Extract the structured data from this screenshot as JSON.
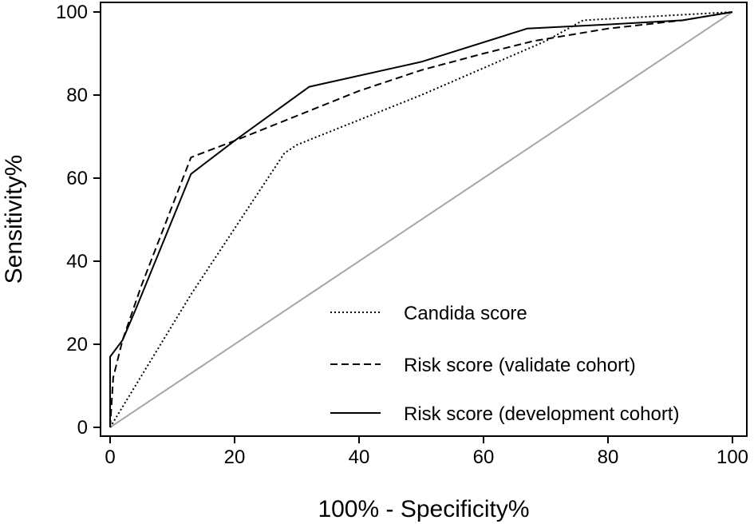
{
  "chart_data": {
    "type": "line",
    "title": "",
    "xlabel": "100% - Specificity%",
    "ylabel": "Sensitivity%",
    "xlim": [
      0,
      100
    ],
    "ylim": [
      0,
      100
    ],
    "xticks": [
      0,
      20,
      40,
      60,
      80,
      100
    ],
    "yticks": [
      0,
      20,
      40,
      60,
      80,
      100
    ],
    "xtick_labels": [
      "0",
      "20",
      "40",
      "60",
      "80",
      "100"
    ],
    "ytick_labels": [
      "0",
      "20",
      "40",
      "60",
      "80",
      "100"
    ],
    "grid": false,
    "legend_position": "bottom-right",
    "reference_line": {
      "name": "reference diagonal",
      "x": [
        0,
        100
      ],
      "y": [
        0,
        100
      ],
      "color": "#a6a6a6"
    },
    "series": [
      {
        "name": "Candida score",
        "style": "dotted",
        "color": "#000000",
        "x": [
          0,
          13,
          28,
          30,
          50,
          70,
          76,
          100
        ],
        "y": [
          0,
          32,
          66,
          68,
          80,
          93,
          98,
          100
        ]
      },
      {
        "name": "Risk score (validate cohort)",
        "style": "dashed",
        "color": "#000000",
        "x": [
          0,
          0.5,
          2,
          5,
          13,
          20,
          30,
          40,
          50,
          60,
          68,
          80,
          92,
          100
        ],
        "y": [
          0,
          12,
          21,
          34,
          65,
          69,
          75,
          81,
          86,
          90,
          93,
          96,
          98,
          100
        ]
      },
      {
        "name": "Risk score (development cohort)",
        "style": "solid",
        "color": "#000000",
        "x": [
          0,
          0,
          2,
          4,
          13,
          20,
          32,
          50,
          67,
          80,
          92,
          100
        ],
        "y": [
          0,
          17,
          21,
          28,
          61,
          69,
          82,
          88,
          96,
          97,
          98,
          100
        ]
      }
    ]
  }
}
